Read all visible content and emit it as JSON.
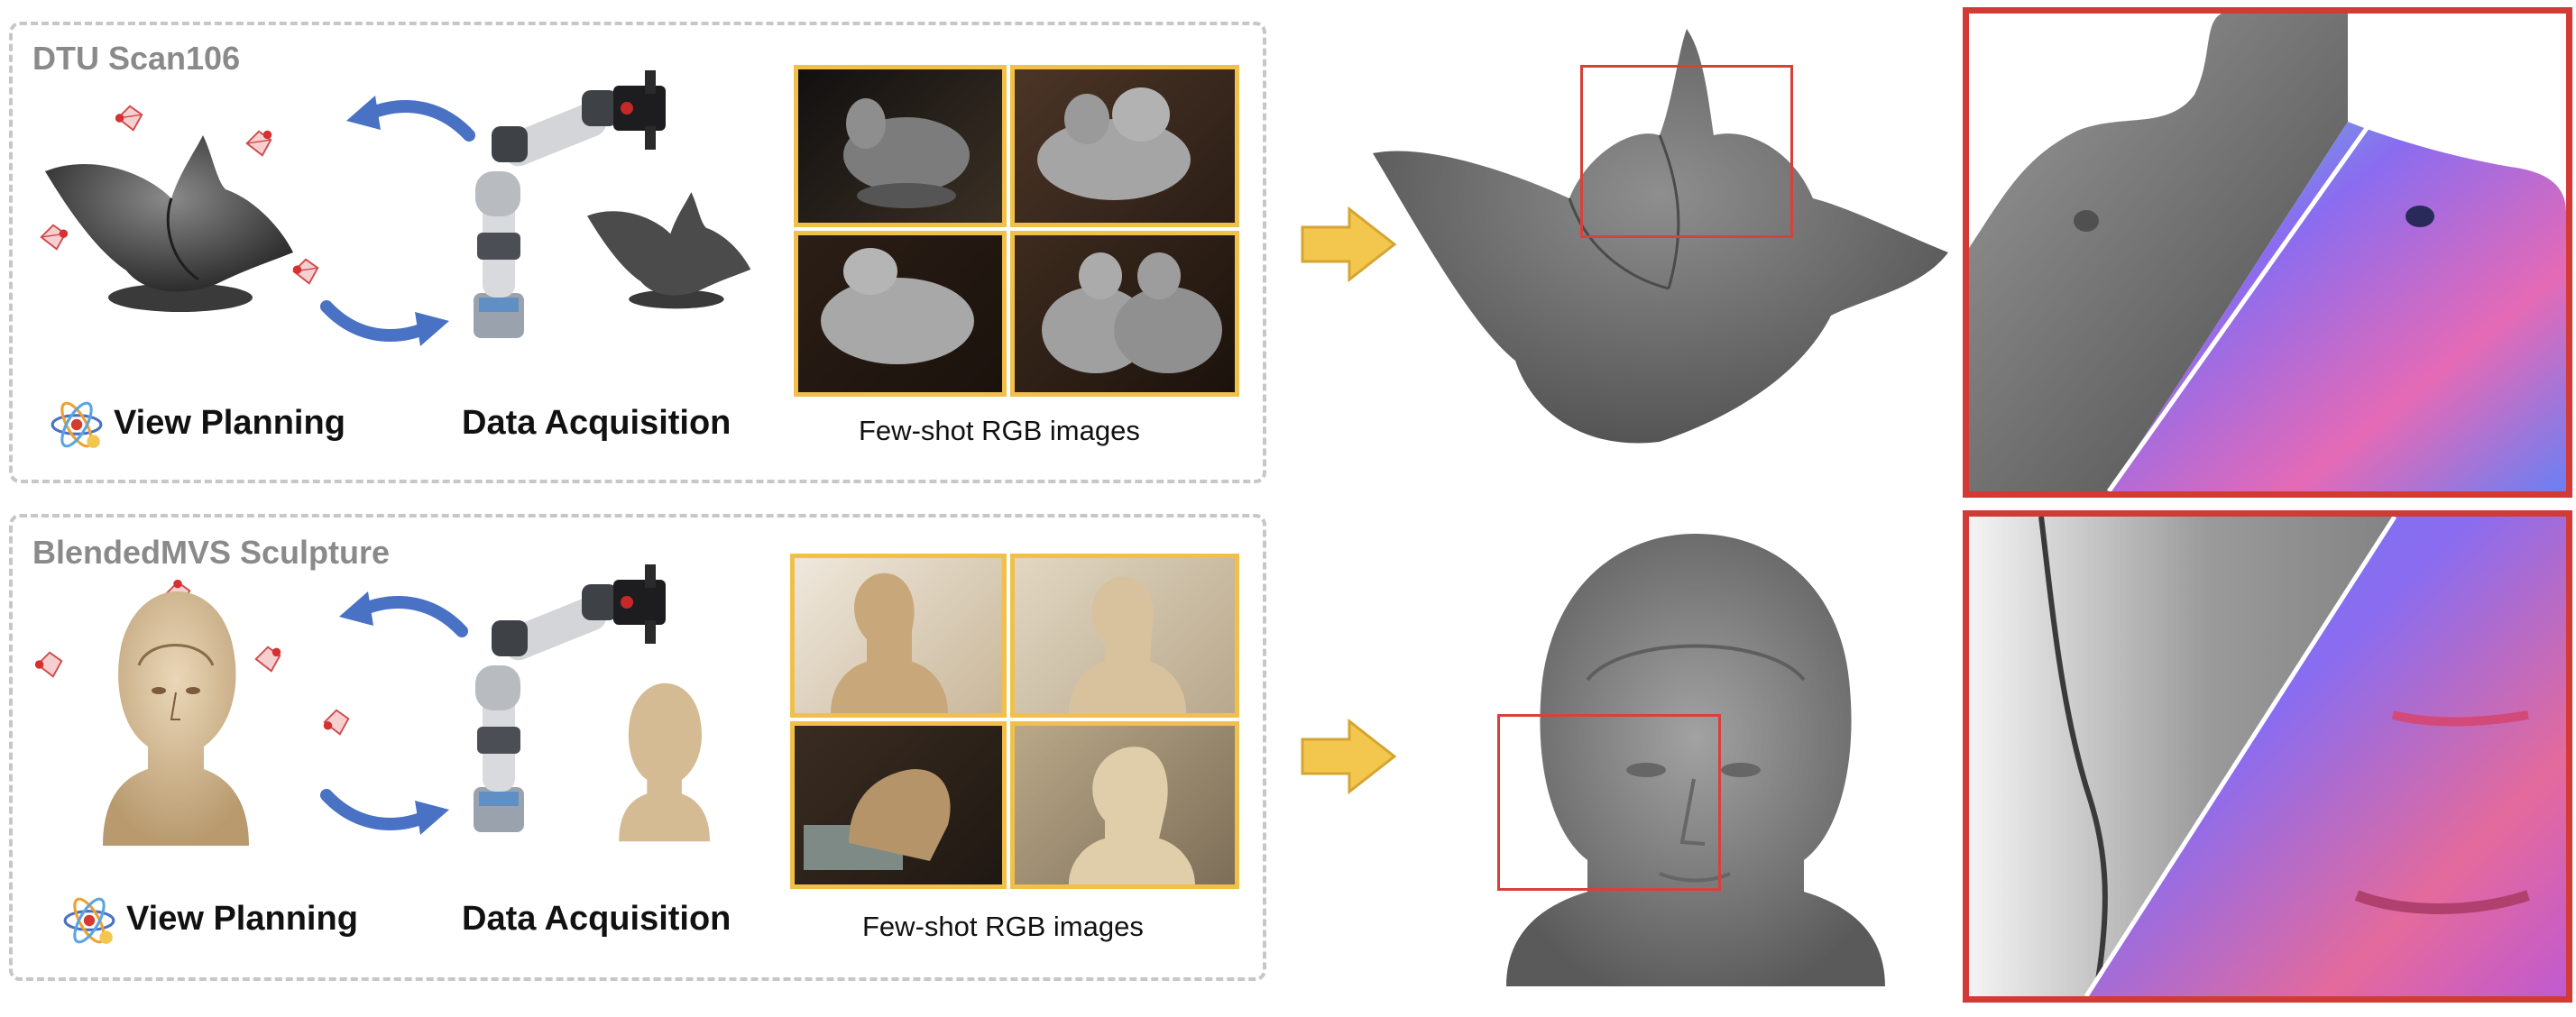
{
  "rows": [
    {
      "title": "DTU Scan106",
      "view_planning_label": "View Planning",
      "data_acquisition_label": "Data Acquisition",
      "images_caption": "Few-shot RGB images"
    },
    {
      "title": "BlendedMVS Sculpture",
      "view_planning_label": "View Planning",
      "data_acquisition_label": "Data Acquisition",
      "images_caption": "Few-shot RGB images"
    }
  ],
  "colors": {
    "panel_border": "#c7c7c7",
    "thumb_border": "#f1c04b",
    "arrow_yellow": "#f3c74e",
    "cycle_arrow_blue": "#4a72c4",
    "zoom_border_red": "#d23a35",
    "mesh_gray": "#6f6f6f"
  },
  "icons": [
    "camera-pose-icon",
    "robot-arm-icon",
    "planning-atom-icon",
    "right-arrow-icon",
    "cycle-arrow-icon"
  ]
}
